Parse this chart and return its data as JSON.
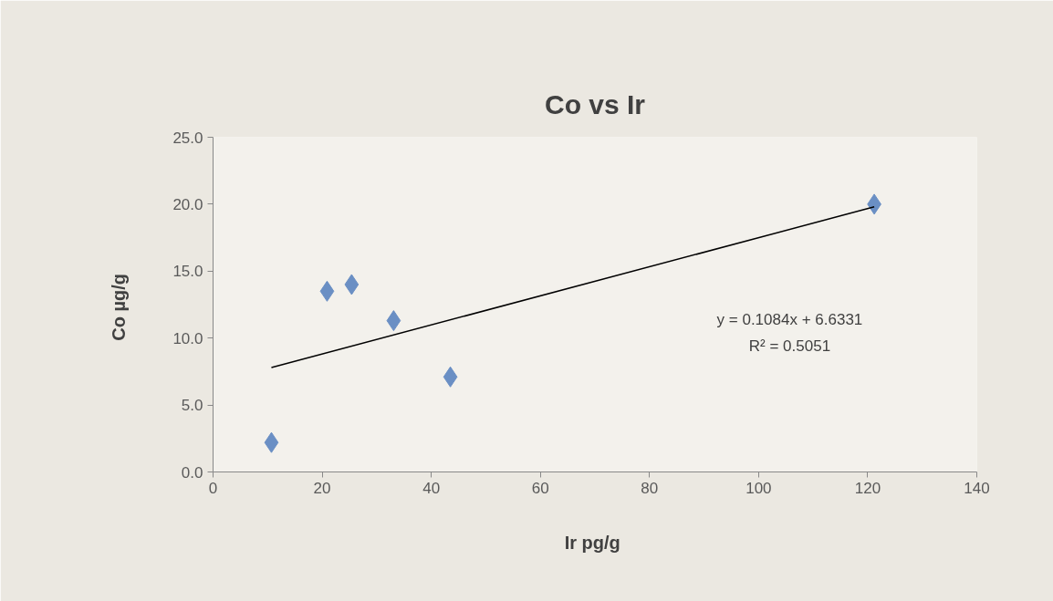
{
  "chart_data": {
    "type": "scatter",
    "title": "Co vs Ir",
    "xlabel": "Ir  pg/g",
    "ylabel": "Co  µg/g",
    "xlim": [
      0,
      140
    ],
    "xticks": [
      0,
      20,
      40,
      60,
      80,
      100,
      120,
      140
    ],
    "ylim": [
      0,
      25
    ],
    "yticks": [
      {
        "value": 0,
        "label": "0.0"
      },
      {
        "value": 5,
        "label": "5.0"
      },
      {
        "value": 10,
        "label": "10.0"
      },
      {
        "value": 15,
        "label": "15.0"
      },
      {
        "value": 20,
        "label": "20.0"
      },
      {
        "value": 25,
        "label": "25.0"
      }
    ],
    "grid": false,
    "marker": "diamond",
    "series": [
      {
        "color": "#6a8fc4",
        "x": [
          10.7,
          20.9,
          25.4,
          33.1,
          43.5,
          121.2
        ],
        "values": [
          2.2,
          13.5,
          14.0,
          11.3,
          7.1,
          20.0
        ]
      },
      {
        "type": "line",
        "color": "#000000",
        "marker": "none",
        "x": [
          10.7,
          121.2
        ],
        "values": [
          7.8,
          19.8
        ]
      }
    ],
    "annotations": [
      "y = 0.1084x + 6.6331",
      "R² = 0.5051"
    ]
  }
}
